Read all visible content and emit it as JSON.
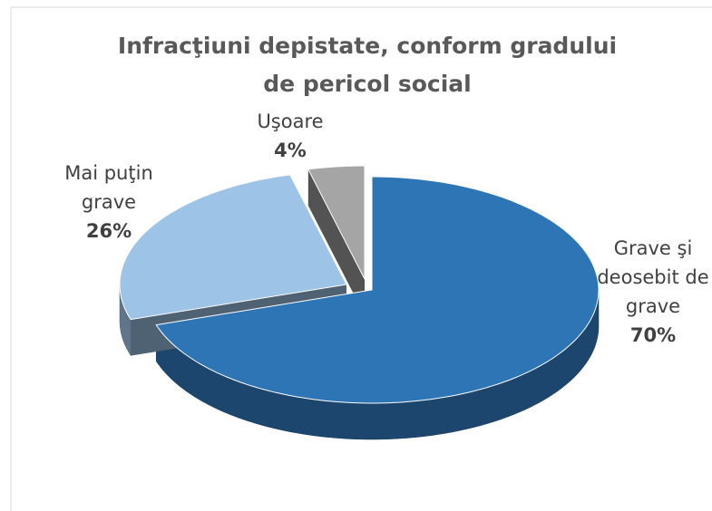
{
  "chart_data": {
    "type": "pie",
    "title": "Infracţiuni depistate, conform gradului de pericol social",
    "categories": [
      "Grave şi deosebit de grave",
      "Mai puţin grave",
      "Uşoare"
    ],
    "values": [
      70,
      26,
      4
    ],
    "value_labels": [
      "70%",
      "26%",
      "4%"
    ],
    "colors": [
      "#2e75b6",
      "#9dc3e6",
      "#a5a5a5"
    ]
  }
}
